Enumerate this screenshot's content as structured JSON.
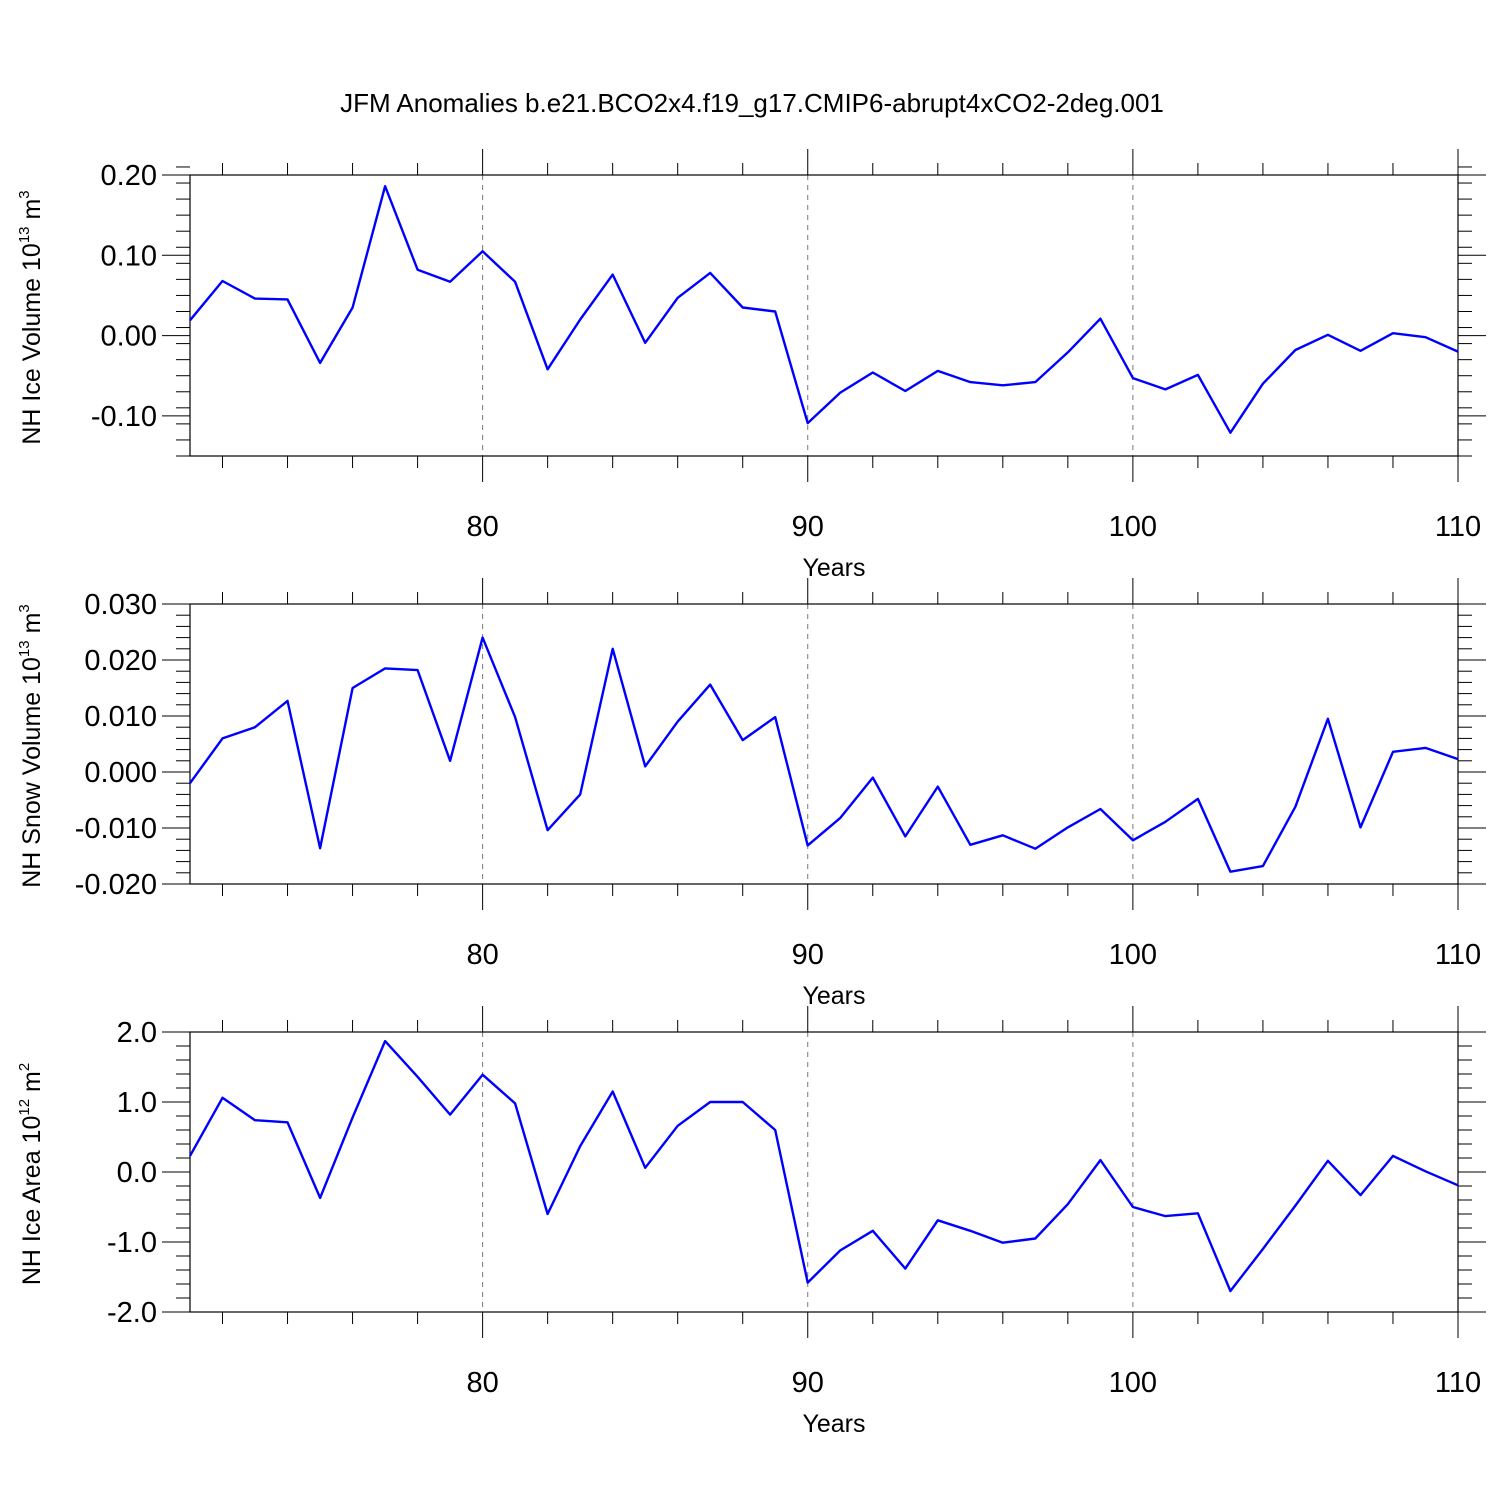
{
  "title": "JFM Anomalies b.e21.BCO2x4.f19_g17.CMIP6-abrupt4xCO2-2deg.001",
  "colors": {
    "line": "#0000ff",
    "axis": "#000000",
    "grid": "#777777"
  },
  "chart_data": [
    {
      "type": "line",
      "ylabel_main": "NH Ice Volume 10",
      "ylabel_sup": "13",
      "ylabel_unit": " m",
      "ylabel_unit_sup": "3",
      "xlabel": "Years",
      "xlim": [
        71,
        110
      ],
      "ylim": [
        -0.15,
        0.2
      ],
      "x_ticks": [
        80,
        90,
        100,
        110
      ],
      "x_tick_labels": [
        "80",
        "90",
        "100",
        "110"
      ],
      "y_ticks": [
        -0.1,
        0.0,
        0.1,
        0.2
      ],
      "y_tick_labels": [
        "-0.10",
        "0.00",
        "0.10",
        "0.20"
      ],
      "y_minor_step": 0.02,
      "vgrid_x": [
        80,
        90,
        100
      ],
      "series": [
        {
          "name": "NH Ice Volume",
          "x": [
            71,
            72,
            73,
            74,
            75,
            76,
            77,
            78,
            79,
            80,
            81,
            82,
            83,
            84,
            85,
            86,
            87,
            88,
            89,
            90,
            91,
            92,
            93,
            94,
            95,
            96,
            97,
            98,
            99,
            100,
            101,
            102,
            103,
            104,
            105,
            106,
            107,
            108,
            109,
            110
          ],
          "values": [
            0.019,
            0.068,
            0.046,
            0.045,
            -0.034,
            0.035,
            0.186,
            0.082,
            0.067,
            0.105,
            0.067,
            -0.042,
            0.02,
            0.076,
            -0.009,
            0.047,
            0.078,
            0.035,
            0.03,
            -0.109,
            -0.071,
            -0.046,
            -0.069,
            -0.044,
            -0.058,
            -0.062,
            -0.058,
            -0.021,
            0.021,
            -0.053,
            -0.067,
            -0.049,
            -0.121,
            -0.06,
            -0.018,
            0.001,
            -0.019,
            0.003,
            -0.002,
            -0.02
          ]
        }
      ]
    },
    {
      "type": "line",
      "ylabel_main": "NH Snow Volume 10",
      "ylabel_sup": "13",
      "ylabel_unit": " m",
      "ylabel_unit_sup": "3",
      "xlabel": "Years",
      "xlim": [
        71,
        110
      ],
      "ylim": [
        -0.02,
        0.03
      ],
      "x_ticks": [
        80,
        90,
        100,
        110
      ],
      "x_tick_labels": [
        "80",
        "90",
        "100",
        "110"
      ],
      "y_ticks": [
        -0.02,
        -0.01,
        0.0,
        0.01,
        0.02,
        0.03
      ],
      "y_tick_labels": [
        "-0.020",
        "-0.010",
        "0.000",
        "0.010",
        "0.020",
        "0.030"
      ],
      "y_minor_step": 0.002,
      "vgrid_x": [
        80,
        90,
        100
      ],
      "series": [
        {
          "name": "NH Snow Volume",
          "x": [
            71,
            72,
            73,
            74,
            75,
            76,
            77,
            78,
            79,
            80,
            81,
            82,
            83,
            84,
            85,
            86,
            87,
            88,
            89,
            90,
            91,
            92,
            93,
            94,
            95,
            96,
            97,
            98,
            99,
            100,
            101,
            102,
            103,
            104,
            105,
            106,
            107,
            108,
            109,
            110
          ],
          "values": [
            -0.002,
            0.006,
            0.008,
            0.0127,
            -0.0136,
            0.015,
            0.0185,
            0.0182,
            0.002,
            0.024,
            0.0098,
            -0.0104,
            -0.004,
            0.022,
            0.001,
            0.009,
            0.0156,
            0.0057,
            0.0098,
            -0.0131,
            -0.0082,
            -0.001,
            -0.0115,
            -0.0026,
            -0.013,
            -0.0113,
            -0.0137,
            -0.0099,
            -0.0066,
            -0.0122,
            -0.0089,
            -0.0048,
            -0.0178,
            -0.0168,
            -0.0062,
            0.0095,
            -0.0099,
            0.0036,
            0.0043,
            0.0023
          ]
        }
      ]
    },
    {
      "type": "line",
      "ylabel_main": "NH Ice Area 10",
      "ylabel_sup": "12",
      "ylabel_unit": " m",
      "ylabel_unit_sup": "2",
      "xlabel": "Years",
      "xlim": [
        71,
        110
      ],
      "ylim": [
        -2.0,
        2.0
      ],
      "x_ticks": [
        80,
        90,
        100,
        110
      ],
      "x_tick_labels": [
        "80",
        "90",
        "100",
        "110"
      ],
      "y_ticks": [
        -2.0,
        -1.0,
        0.0,
        1.0,
        2.0
      ],
      "y_tick_labels": [
        "-2.0",
        "-1.0",
        "0.0",
        "1.0",
        "2.0"
      ],
      "y_minor_step": 0.2,
      "vgrid_x": [
        80,
        90,
        100
      ],
      "series": [
        {
          "name": "NH Ice Area",
          "x": [
            71,
            72,
            73,
            74,
            75,
            76,
            77,
            78,
            79,
            80,
            81,
            82,
            83,
            84,
            85,
            86,
            87,
            88,
            89,
            90,
            91,
            92,
            93,
            94,
            95,
            96,
            97,
            98,
            99,
            100,
            101,
            102,
            103,
            104,
            105,
            106,
            107,
            108,
            109,
            110
          ],
          "values": [
            0.23,
            1.06,
            0.74,
            0.71,
            -0.37,
            0.78,
            1.87,
            1.36,
            0.82,
            1.39,
            0.98,
            -0.6,
            0.37,
            1.15,
            0.06,
            0.66,
            1.0,
            1.0,
            0.6,
            -1.58,
            -1.12,
            -0.84,
            -1.38,
            -0.69,
            -0.84,
            -1.01,
            -0.95,
            -0.46,
            0.17,
            -0.5,
            -0.63,
            -0.59,
            -1.7,
            -1.1,
            -0.48,
            0.16,
            -0.33,
            0.23,
            0.01,
            -0.19
          ]
        }
      ]
    }
  ]
}
